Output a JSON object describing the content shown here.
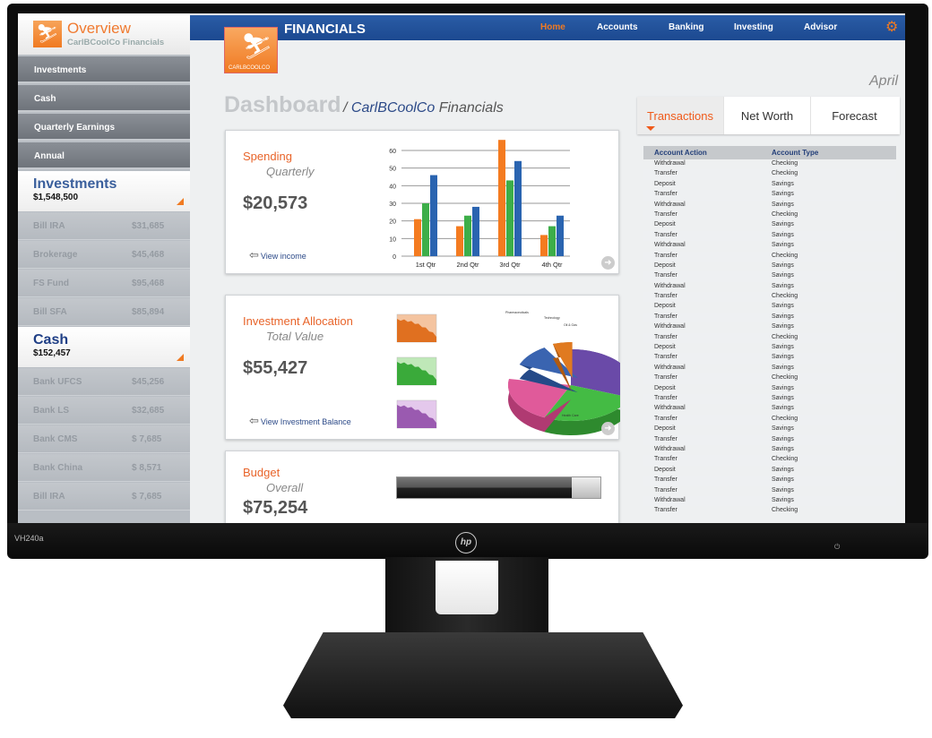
{
  "monitor": {
    "model": "VH240a",
    "brand": "hp"
  },
  "sidebar": {
    "overview": {
      "title": "Overview",
      "subtitle": "CarlBCoolCo Financials"
    },
    "nav": [
      "Investments",
      "Cash",
      "Quarterly Earnings",
      "Annual"
    ],
    "investments": {
      "title": "Investments",
      "total": "$1,548,500",
      "items": [
        {
          "name": "Bill IRA",
          "amount": "$31,685"
        },
        {
          "name": "Brokerage",
          "amount": "$45,468"
        },
        {
          "name": "FS Fund",
          "amount": "$95,468"
        },
        {
          "name": "Bill SFA",
          "amount": "$85,894"
        }
      ]
    },
    "cash": {
      "title": "Cash",
      "total": "$152,457",
      "items": [
        {
          "name": "Bank UFCS",
          "amount": "$45,256"
        },
        {
          "name": "Bank LS",
          "amount": "$32,685"
        },
        {
          "name": "Bank CMS",
          "amount": "$ 7,685"
        },
        {
          "name": "Bank China",
          "amount": "$ 8,571"
        },
        {
          "name": "Bill IRA",
          "amount": "$ 7,685"
        }
      ]
    }
  },
  "header": {
    "brand": "FINANCIALS",
    "logo_text": "CARLBCOOLCO",
    "nav": [
      "Home",
      "Accounts",
      "Banking",
      "Investing",
      "Advisor"
    ],
    "active": "Home",
    "accent": "#f07a22",
    "bar_color": "#1c4990"
  },
  "month": "April",
  "page": {
    "title": "Dashboard",
    "crumb_company": "CarlBCoolCo",
    "crumb_rest": "Financials"
  },
  "spending": {
    "title": "Spending",
    "subtitle": "Quarterly",
    "value": "$20,573",
    "link": "View income",
    "chart": {
      "categories": [
        "1st Qtr",
        "2nd Qtr",
        "3rd Qtr",
        "4th Qtr"
      ],
      "yticks": [
        "0",
        "10",
        "20",
        "30",
        "40",
        "50",
        "60"
      ],
      "series": [
        {
          "color": "#f47b20",
          "values": [
            21,
            17,
            66,
            12
          ]
        },
        {
          "color": "#3dae49",
          "values": [
            30,
            23,
            43,
            17
          ]
        },
        {
          "color": "#2a64b0",
          "values": [
            46,
            28,
            54,
            23
          ]
        }
      ]
    }
  },
  "allocation": {
    "title": "Investment Allocation",
    "subtitle": "Total Value",
    "value": "$55,427",
    "link": "View Investment Balance",
    "pie_labels": [
      "Pharmaceuticals",
      "Technology",
      "Oil & Gas",
      "Health Care"
    ]
  },
  "budget": {
    "title": "Budget",
    "subtitle": "Overall",
    "value": "$75,254",
    "progress": 0.86
  },
  "tabs": [
    "Transactions",
    "Net Worth",
    "Forecast"
  ],
  "active_tab": "Transactions",
  "table": {
    "headers": [
      "Account Action",
      "Account Type"
    ],
    "rows": [
      [
        "Withdrawal",
        "Checking"
      ],
      [
        "Transfer",
        "Checking"
      ],
      [
        "Deposit",
        "Savings"
      ],
      [
        "Transfer",
        "Savings"
      ],
      [
        "Withdrawal",
        "Savings"
      ],
      [
        "Transfer",
        "Checking"
      ],
      [
        "Deposit",
        "Savings"
      ],
      [
        "Transfer",
        "Savings"
      ],
      [
        "Withdrawal",
        "Savings"
      ],
      [
        "Transfer",
        "Checking"
      ],
      [
        "Deposit",
        "Savings"
      ],
      [
        "Transfer",
        "Savings"
      ],
      [
        "Withdrawal",
        "Savings"
      ],
      [
        "Transfer",
        "Checking"
      ],
      [
        "Deposit",
        "Savings"
      ],
      [
        "Transfer",
        "Savings"
      ],
      [
        "Withdrawal",
        "Savings"
      ],
      [
        "Transfer",
        "Checking"
      ],
      [
        "Deposit",
        "Savings"
      ],
      [
        "Transfer",
        "Savings"
      ],
      [
        "Withdrawal",
        "Savings"
      ],
      [
        "Transfer",
        "Checking"
      ],
      [
        "Deposit",
        "Savings"
      ],
      [
        "Transfer",
        "Savings"
      ],
      [
        "Withdrawal",
        "Savings"
      ],
      [
        "Transfer",
        "Checking"
      ],
      [
        "Deposit",
        "Savings"
      ],
      [
        "Transfer",
        "Savings"
      ],
      [
        "Withdrawal",
        "Savings"
      ],
      [
        "Transfer",
        "Checking"
      ],
      [
        "Deposit",
        "Savings"
      ],
      [
        "Transfer",
        "Savings"
      ],
      [
        "Transfer",
        "Savings"
      ],
      [
        "Withdrawal",
        "Savings"
      ],
      [
        "Transfer",
        "Checking"
      ]
    ]
  }
}
